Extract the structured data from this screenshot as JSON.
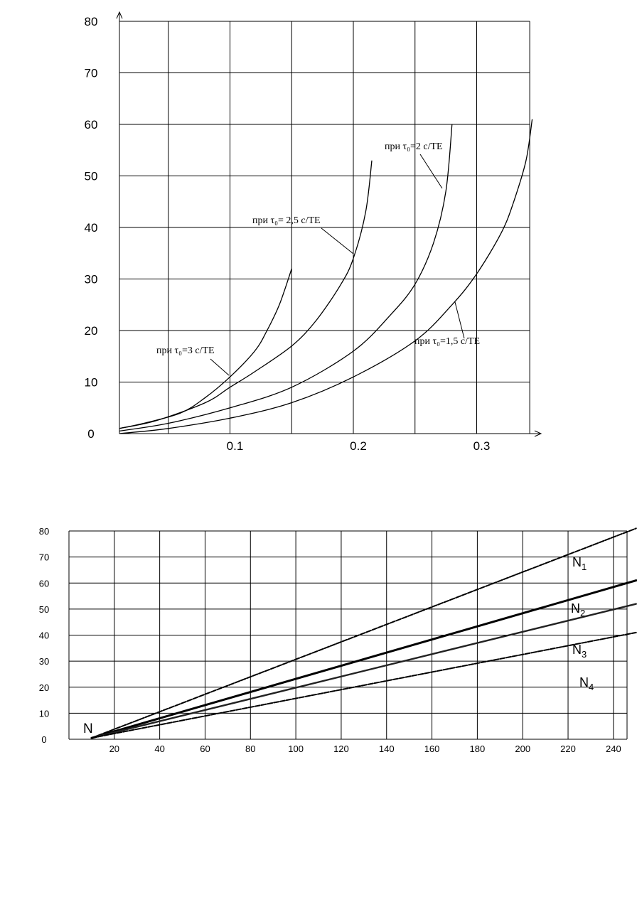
{
  "chart_data": [
    {
      "type": "line",
      "title": "",
      "xlabel": "",
      "ylabel": "",
      "xlim": [
        0,
        0.36
      ],
      "ylim": [
        0,
        80
      ],
      "grid": true,
      "x_ticks": [
        "0.1",
        "0.2",
        "0.3"
      ],
      "y_ticks": [
        "0",
        "10",
        "20",
        "30",
        "40",
        "50",
        "60",
        "70",
        "80"
      ],
      "annotations": [
        "при τ₀=3 с/ТЕ",
        "при τ₀= 2,5 с/ТЕ",
        "при τ₀=2 с/ТЕ",
        "при τ₀=1,5 с/ТЕ"
      ],
      "series": [
        {
          "x": [
            0,
            0.03,
            0.06,
            0.08,
            0.1,
            0.12,
            0.13,
            0.14,
            0.15
          ],
          "y": [
            1,
            2,
            4,
            7,
            11,
            16,
            20,
            25,
            32
          ]
        },
        {
          "x": [
            0,
            0.04,
            0.08,
            0.1,
            0.12,
            0.15,
            0.17,
            0.19,
            0.2,
            0.21,
            0.215
          ],
          "y": [
            1,
            2.5,
            6,
            9,
            12,
            17,
            22,
            29,
            34,
            43,
            53
          ]
        },
        {
          "x": [
            0,
            0.05,
            0.1,
            0.15,
            0.2,
            0.23,
            0.25,
            0.265,
            0.275,
            0.28
          ],
          "y": [
            0.5,
            2,
            5,
            9,
            16,
            23,
            29,
            37,
            47,
            60
          ]
        },
        {
          "x": [
            0,
            0.05,
            0.1,
            0.15,
            0.2,
            0.25,
            0.28,
            0.3,
            0.32,
            0.33,
            0.34,
            0.345
          ],
          "y": [
            0,
            1,
            3,
            6,
            11,
            18,
            25,
            31,
            39,
            45,
            53,
            61
          ]
        }
      ]
    },
    {
      "type": "line",
      "title": "",
      "xlabel": "",
      "ylabel": "",
      "xlim": [
        0,
        250
      ],
      "ylim": [
        0,
        80
      ],
      "grid": true,
      "x_ticks": [
        "20",
        "40",
        "60",
        "80",
        "100",
        "120",
        "140",
        "160",
        "180",
        "200",
        "220",
        "240"
      ],
      "y_ticks": [
        "0",
        "10",
        "20",
        "30",
        "40",
        "50",
        "60",
        "70",
        "80"
      ],
      "point_label": "N",
      "series": [
        {
          "name": "N1",
          "x": [
            10,
            250
          ],
          "y": [
            0.5,
            81
          ]
        },
        {
          "name": "N2",
          "x": [
            10,
            250
          ],
          "y": [
            0.5,
            61
          ]
        },
        {
          "name": "N3",
          "x": [
            10,
            250
          ],
          "y": [
            0.5,
            52
          ]
        },
        {
          "name": "N4",
          "x": [
            10,
            250
          ],
          "y": [
            0.5,
            41
          ]
        }
      ]
    }
  ]
}
